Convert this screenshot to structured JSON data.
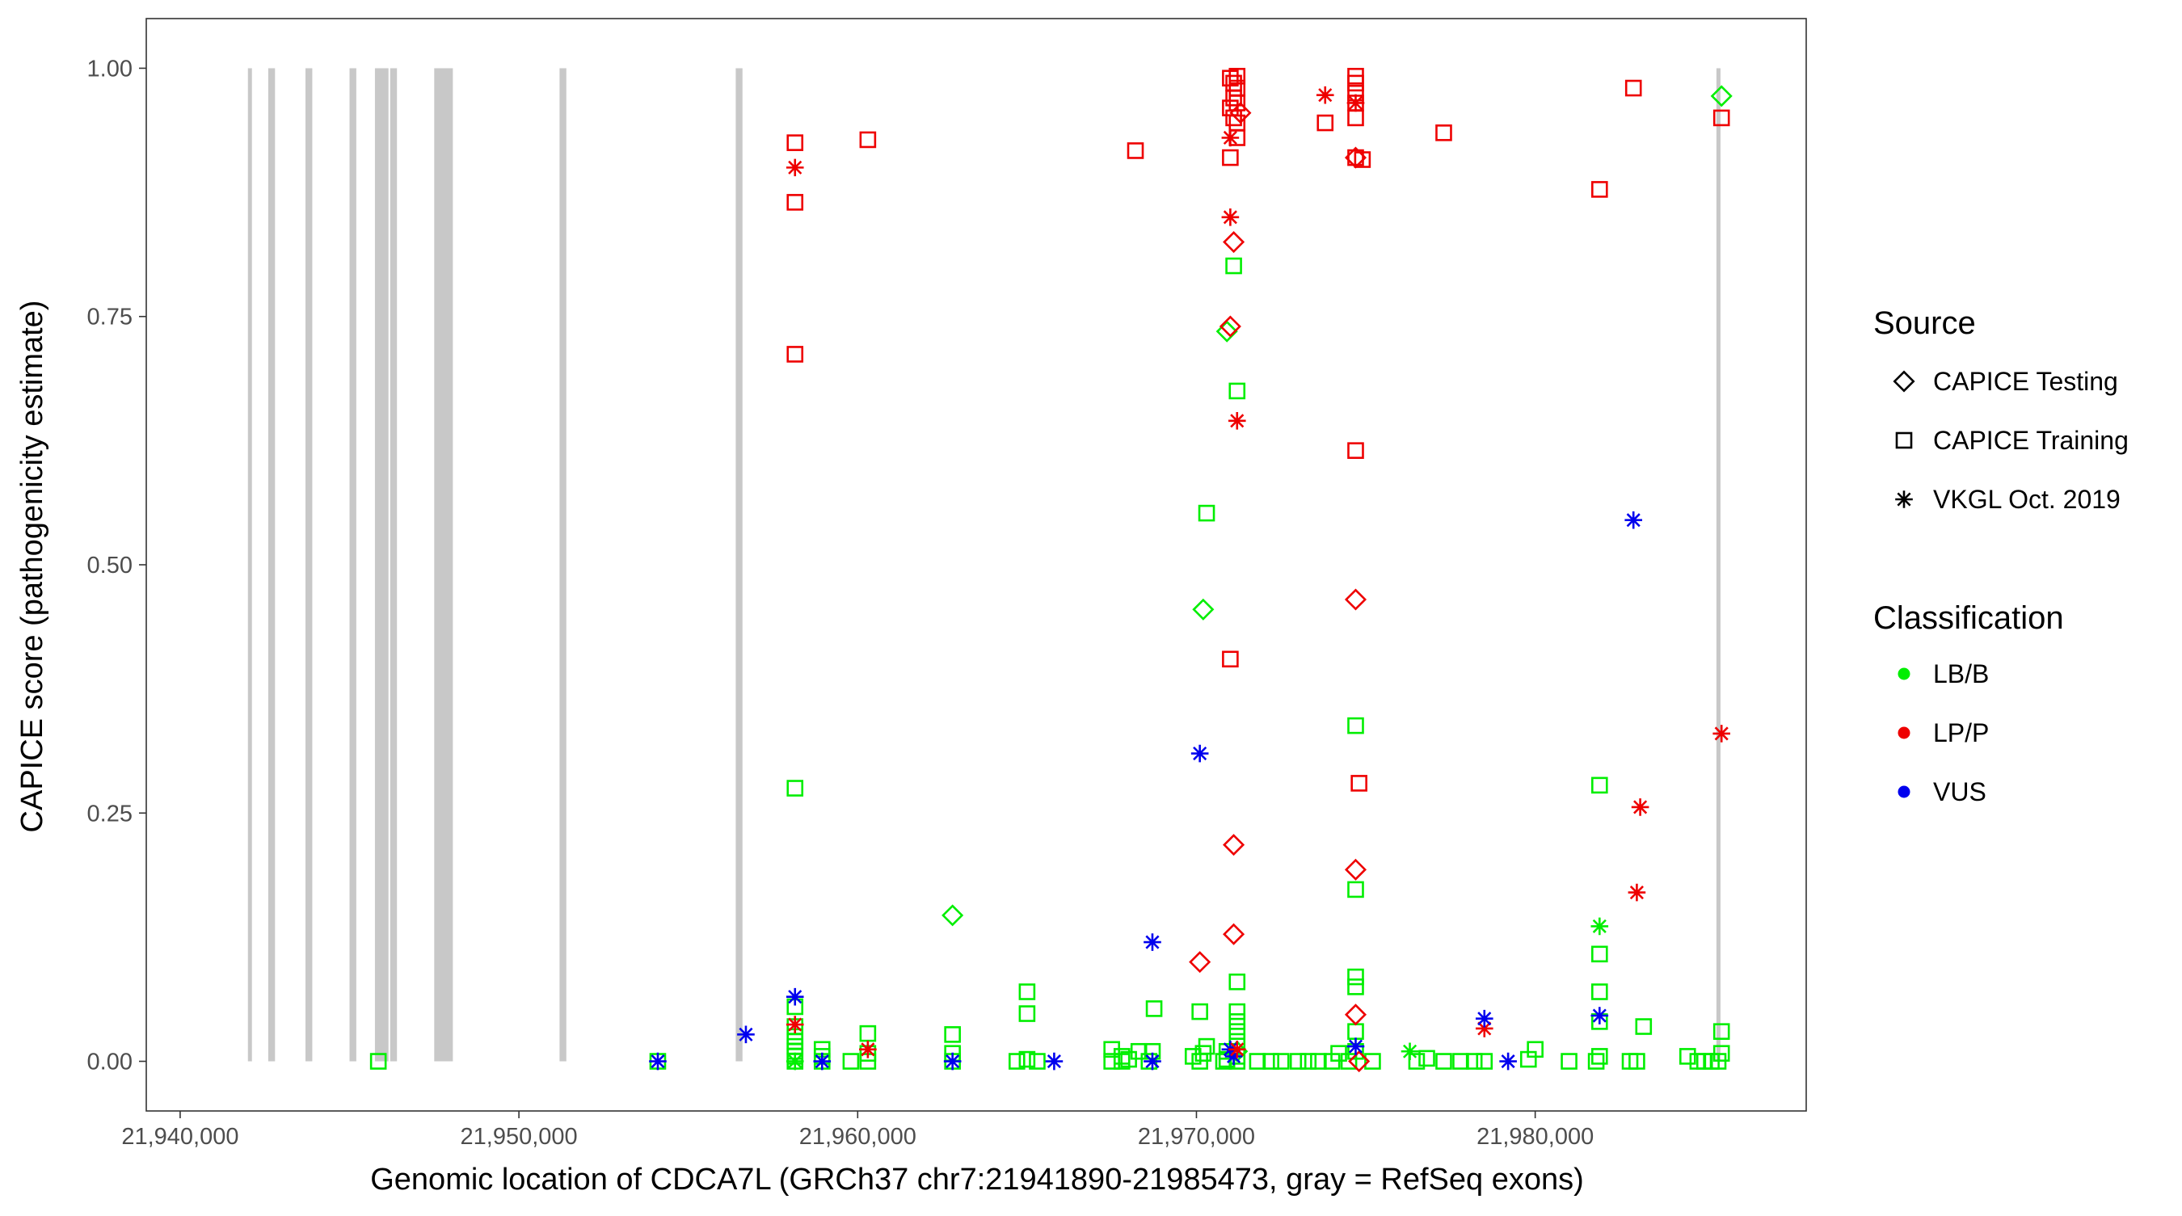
{
  "colors": {
    "LB/B": "#00ee00",
    "LP/P": "#ee0000",
    "VUS": "#0000ee",
    "exon": "#c8c8c8",
    "frame": "#333333"
  },
  "chart_data": {
    "type": "scatter",
    "title": "",
    "xlabel": "Genomic location of CDCA7L (GRCh37 chr7:21941890-21985473, gray = RefSeq exons)",
    "ylabel": "CAPICE score (pathogenicity estimate)",
    "xlim": [
      21939000,
      21988000
    ],
    "ylim": [
      -0.05,
      1.05
    ],
    "x_ticks": [
      21940000,
      21950000,
      21960000,
      21970000,
      21980000
    ],
    "x_tick_labels": [
      "21,940,000",
      "21,950,000",
      "21,960,000",
      "21,970,000",
      "21,980,000"
    ],
    "y_ticks": [
      0,
      0.25,
      0.5,
      0.75,
      1
    ],
    "y_tick_labels": [
      "0.00",
      "0.25",
      "0.50",
      "0.75",
      "1.00"
    ],
    "exons": [
      [
        21942000,
        21942100
      ],
      [
        21942600,
        21942800
      ],
      [
        21943700,
        21943900
      ],
      [
        21945000,
        21945200
      ],
      [
        21945750,
        21946150
      ],
      [
        21946200,
        21946400
      ],
      [
        21947500,
        21948050
      ],
      [
        21951200,
        21951400
      ],
      [
        21956400,
        21956600
      ],
      [
        21985350,
        21985450
      ]
    ],
    "legend": {
      "source_title": "Source",
      "source_items": [
        {
          "label": "CAPICE Testing",
          "shape": "diamond"
        },
        {
          "label": "CAPICE Training",
          "shape": "square"
        },
        {
          "label": "VKGL Oct. 2019",
          "shape": "star"
        }
      ],
      "class_title": "Classification",
      "class_items": [
        {
          "label": "LB/B",
          "cls": "LB/B"
        },
        {
          "label": "LP/P",
          "cls": "LP/P"
        },
        {
          "label": "VUS",
          "cls": "VUS"
        }
      ]
    },
    "series": [
      {
        "name": "CAPICE Training",
        "shape": "square",
        "points": [
          [
            21945850,
            0.0,
            "LB/B"
          ],
          [
            21954100,
            0.0,
            "LB/B"
          ],
          [
            21958150,
            0.0,
            "LB/B"
          ],
          [
            21958150,
            0.005,
            "LB/B"
          ],
          [
            21958150,
            0.01,
            "LB/B"
          ],
          [
            21958150,
            0.015,
            "LB/B"
          ],
          [
            21958150,
            0.02,
            "LB/B"
          ],
          [
            21958150,
            0.025,
            "LB/B"
          ],
          [
            21958150,
            0.035,
            "LB/B"
          ],
          [
            21958150,
            0.055,
            "LB/B"
          ],
          [
            21958150,
            0.275,
            "LB/B"
          ],
          [
            21958150,
            0.712,
            "LP/P"
          ],
          [
            21958150,
            0.865,
            "LP/P"
          ],
          [
            21958150,
            0.925,
            "LP/P"
          ],
          [
            21958950,
            0.0,
            "LB/B"
          ],
          [
            21958950,
            0.005,
            "LB/B"
          ],
          [
            21958950,
            0.012,
            "LB/B"
          ],
          [
            21959800,
            0.0,
            "LB/B"
          ],
          [
            21960300,
            0.0,
            "LB/B"
          ],
          [
            21960300,
            0.008,
            "LB/B"
          ],
          [
            21960300,
            0.028,
            "LB/B"
          ],
          [
            21960300,
            0.928,
            "LP/P"
          ],
          [
            21962800,
            0.0,
            "LB/B"
          ],
          [
            21962800,
            0.008,
            "LB/B"
          ],
          [
            21962800,
            0.027,
            "LB/B"
          ],
          [
            21964700,
            0.0,
            "LB/B"
          ],
          [
            21965000,
            0.002,
            "LB/B"
          ],
          [
            21965000,
            0.048,
            "LB/B"
          ],
          [
            21965000,
            0.07,
            "LB/B"
          ],
          [
            21965300,
            0.0,
            "LB/B"
          ],
          [
            21967500,
            0.0,
            "LB/B"
          ],
          [
            21967500,
            0.012,
            "LB/B"
          ],
          [
            21967800,
            0.0,
            "LB/B"
          ],
          [
            21967800,
            0.005,
            "LB/B"
          ],
          [
            21968000,
            0.002,
            "LB/B"
          ],
          [
            21968300,
            0.01,
            "LB/B"
          ],
          [
            21968200,
            0.917,
            "LP/P"
          ],
          [
            21968600,
            0.0,
            "LB/B"
          ],
          [
            21968700,
            0.01,
            "LB/B"
          ],
          [
            21968750,
            0.053,
            "LB/B"
          ],
          [
            21969900,
            0.005,
            "LB/B"
          ],
          [
            21970100,
            0.0,
            "LB/B"
          ],
          [
            21970100,
            0.05,
            "LB/B"
          ],
          [
            21970200,
            0.008,
            "LB/B"
          ],
          [
            21970300,
            0.015,
            "LB/B"
          ],
          [
            21970300,
            0.552,
            "LB/B"
          ],
          [
            21970800,
            0.0,
            "LB/B"
          ],
          [
            21970900,
            0.002,
            "LB/B"
          ],
          [
            21970900,
            0.01,
            "LB/B"
          ],
          [
            21971000,
            0.405,
            "LP/P"
          ],
          [
            21971000,
            0.91,
            "LP/P"
          ],
          [
            21971000,
            0.96,
            "LP/P"
          ],
          [
            21971000,
            0.99,
            "LP/P"
          ],
          [
            21971100,
            0.801,
            "LB/B"
          ],
          [
            21971100,
            0.95,
            "LP/P"
          ],
          [
            21971100,
            0.97,
            "LP/P"
          ],
          [
            21971100,
            0.985,
            "LP/P"
          ],
          [
            21971200,
            0.0,
            "LB/B"
          ],
          [
            21971200,
            0.005,
            "LB/B"
          ],
          [
            21971200,
            0.02,
            "LB/B"
          ],
          [
            21971200,
            0.03,
            "LB/B"
          ],
          [
            21971200,
            0.04,
            "LB/B"
          ],
          [
            21971200,
            0.05,
            "LB/B"
          ],
          [
            21971200,
            0.08,
            "LB/B"
          ],
          [
            21971200,
            0.675,
            "LB/B"
          ],
          [
            21971200,
            0.93,
            "LP/P"
          ],
          [
            21971200,
            0.945,
            "LP/P"
          ],
          [
            21971200,
            0.965,
            "LP/P"
          ],
          [
            21971200,
            0.98,
            "LP/P"
          ],
          [
            21971200,
            0.992,
            "LP/P"
          ],
          [
            21971800,
            0.0,
            "LB/B"
          ],
          [
            21972200,
            0.0,
            "LB/B"
          ],
          [
            21972500,
            0.0,
            "LB/B"
          ],
          [
            21973000,
            0.0,
            "LB/B"
          ],
          [
            21973300,
            0.0,
            "LB/B"
          ],
          [
            21973600,
            0.0,
            "LB/B"
          ],
          [
            21973800,
            0.945,
            "LP/P"
          ],
          [
            21974000,
            0.0,
            "LB/B"
          ],
          [
            21974200,
            0.008,
            "LB/B"
          ],
          [
            21974500,
            0.0,
            "LB/B"
          ],
          [
            21974700,
            0.01,
            "LB/B"
          ],
          [
            21974700,
            0.03,
            "LB/B"
          ],
          [
            21974700,
            0.075,
            "LB/B"
          ],
          [
            21974700,
            0.085,
            "LB/B"
          ],
          [
            21974700,
            0.173,
            "LB/B"
          ],
          [
            21974700,
            0.338,
            "LB/B"
          ],
          [
            21974700,
            0.615,
            "LP/P"
          ],
          [
            21974700,
            0.91,
            "LP/P"
          ],
          [
            21974700,
            0.95,
            "LP/P"
          ],
          [
            21974700,
            0.965,
            "LP/P"
          ],
          [
            21974700,
            0.975,
            "LP/P"
          ],
          [
            21974700,
            0.985,
            "LP/P"
          ],
          [
            21974700,
            0.992,
            "LP/P"
          ],
          [
            21974800,
            0.28,
            "LP/P"
          ],
          [
            21974900,
            0.908,
            "LP/P"
          ],
          [
            21975200,
            0.0,
            "LB/B"
          ],
          [
            21976500,
            0.0,
            "LB/B"
          ],
          [
            21976800,
            0.003,
            "LB/B"
          ],
          [
            21977300,
            0.0,
            "LB/B"
          ],
          [
            21977300,
            0.935,
            "LP/P"
          ],
          [
            21977800,
            0.0,
            "LB/B"
          ],
          [
            21978200,
            0.0,
            "LB/B"
          ],
          [
            21978500,
            0.0,
            "LB/B"
          ],
          [
            21979800,
            0.002,
            "LB/B"
          ],
          [
            21980000,
            0.012,
            "LB/B"
          ],
          [
            21981000,
            0.0,
            "LB/B"
          ],
          [
            21981800,
            0.0,
            "LB/B"
          ],
          [
            21981900,
            0.005,
            "LB/B"
          ],
          [
            21981900,
            0.04,
            "LB/B"
          ],
          [
            21981900,
            0.07,
            "LB/B"
          ],
          [
            21981900,
            0.108,
            "LB/B"
          ],
          [
            21981900,
            0.278,
            "LB/B"
          ],
          [
            21981900,
            0.878,
            "LP/P"
          ],
          [
            21982800,
            0.0,
            "LB/B"
          ],
          [
            21982900,
            0.98,
            "LP/P"
          ],
          [
            21983000,
            0.0,
            "LB/B"
          ],
          [
            21983200,
            0.035,
            "LB/B"
          ],
          [
            21984500,
            0.005,
            "LB/B"
          ],
          [
            21984800,
            0.0,
            "LB/B"
          ],
          [
            21985000,
            0.0,
            "LB/B"
          ],
          [
            21985200,
            0.0,
            "LB/B"
          ],
          [
            21985400,
            0.0,
            "LB/B"
          ],
          [
            21985500,
            0.008,
            "LB/B"
          ],
          [
            21985500,
            0.03,
            "LB/B"
          ],
          [
            21985500,
            0.95,
            "LP/P"
          ]
        ]
      },
      {
        "name": "CAPICE Testing",
        "shape": "diamond",
        "points": [
          [
            21962800,
            0.147,
            "LB/B"
          ],
          [
            21970200,
            0.455,
            "LB/B"
          ],
          [
            21970100,
            0.1,
            "LP/P"
          ],
          [
            21970900,
            0.735,
            "LB/B"
          ],
          [
            21971000,
            0.74,
            "LP/P"
          ],
          [
            21971100,
            0.218,
            "LP/P"
          ],
          [
            21971100,
            0.128,
            "LP/P"
          ],
          [
            21971100,
            0.825,
            "LP/P"
          ],
          [
            21971200,
            0.01,
            "LB/B"
          ],
          [
            21971300,
            0.955,
            "LP/P"
          ],
          [
            21974700,
            0.465,
            "LP/P"
          ],
          [
            21974700,
            0.193,
            "LP/P"
          ],
          [
            21974700,
            0.047,
            "LP/P"
          ],
          [
            21974700,
            0.91,
            "LP/P"
          ],
          [
            21974800,
            0.0,
            "LP/P"
          ],
          [
            21985500,
            0.972,
            "LB/B"
          ]
        ]
      },
      {
        "name": "VKGL Oct. 2019",
        "shape": "star",
        "points": [
          [
            21954100,
            0.0,
            "VUS"
          ],
          [
            21956700,
            0.027,
            "VUS"
          ],
          [
            21958150,
            0.0,
            "LB/B"
          ],
          [
            21958150,
            0.037,
            "LP/P"
          ],
          [
            21958150,
            0.065,
            "VUS"
          ],
          [
            21958150,
            0.9,
            "LP/P"
          ],
          [
            21958950,
            0.0,
            "VUS"
          ],
          [
            21960300,
            0.012,
            "LP/P"
          ],
          [
            21962800,
            0.0,
            "VUS"
          ],
          [
            21965800,
            0.0,
            "VUS"
          ],
          [
            21968700,
            0.0,
            "VUS"
          ],
          [
            21968700,
            0.12,
            "VUS"
          ],
          [
            21970100,
            0.31,
            "VUS"
          ],
          [
            21971000,
            0.012,
            "VUS"
          ],
          [
            21971000,
            0.85,
            "LP/P"
          ],
          [
            21971000,
            0.93,
            "LP/P"
          ],
          [
            21971100,
            0.005,
            "VUS"
          ],
          [
            21971200,
            0.645,
            "LP/P"
          ],
          [
            21971200,
            0.012,
            "LP/P"
          ],
          [
            21973800,
            0.973,
            "LP/P"
          ],
          [
            21974700,
            0.015,
            "VUS"
          ],
          [
            21974700,
            0.965,
            "LP/P"
          ],
          [
            21976300,
            0.01,
            "LB/B"
          ],
          [
            21978500,
            0.033,
            "LP/P"
          ],
          [
            21978500,
            0.043,
            "VUS"
          ],
          [
            21979200,
            0.0,
            "VUS"
          ],
          [
            21981900,
            0.136,
            "LB/B"
          ],
          [
            21981900,
            0.046,
            "VUS"
          ],
          [
            21982900,
            0.545,
            "VUS"
          ],
          [
            21983000,
            0.17,
            "LP/P"
          ],
          [
            21983100,
            0.256,
            "LP/P"
          ],
          [
            21985500,
            0.33,
            "LP/P"
          ]
        ]
      }
    ]
  }
}
